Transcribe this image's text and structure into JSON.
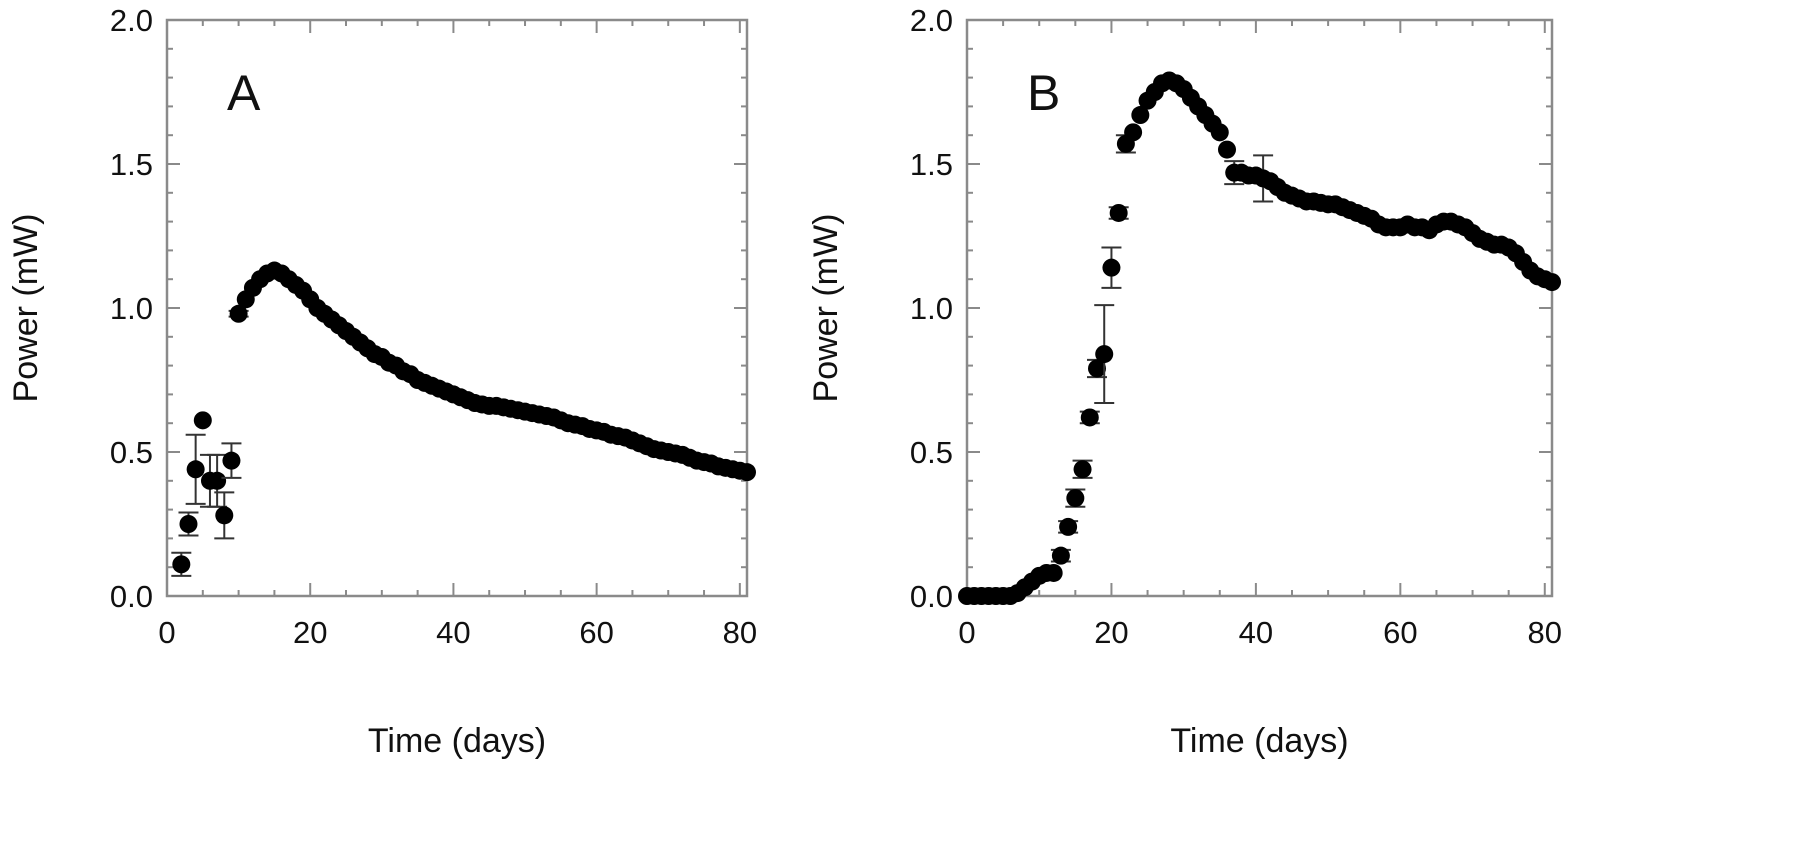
{
  "chart_data": [
    {
      "type": "scatter",
      "panel_label": "A",
      "xlabel": "Time (days)",
      "ylabel": "Power (mW)",
      "xlim": [
        0,
        81
      ],
      "ylim": [
        0,
        2.0
      ],
      "xticks": [
        "0",
        "20",
        "40",
        "60",
        "80"
      ],
      "yticks": [
        "0.0",
        "0.5",
        "1.0",
        "1.5",
        "2.0"
      ],
      "grid": false,
      "x": [
        2,
        3,
        4,
        5,
        6,
        7,
        8,
        9,
        10,
        11,
        12,
        13,
        14,
        15,
        16,
        17,
        18,
        19,
        20,
        21,
        22,
        23,
        24,
        25,
        26,
        27,
        28,
        29,
        30,
        31,
        32,
        33,
        34,
        35,
        36,
        37,
        38,
        39,
        40,
        41,
        42,
        43,
        44,
        45,
        46,
        47,
        48,
        49,
        50,
        51,
        52,
        53,
        54,
        55,
        56,
        57,
        58,
        59,
        60,
        61,
        62,
        63,
        64,
        65,
        66,
        67,
        68,
        69,
        70,
        71,
        72,
        73,
        74,
        75,
        76,
        77,
        78,
        79,
        80,
        81
      ],
      "y": [
        0.11,
        0.25,
        0.44,
        0.61,
        0.4,
        0.4,
        0.28,
        0.47,
        0.98,
        1.03,
        1.07,
        1.1,
        1.12,
        1.13,
        1.12,
        1.1,
        1.08,
        1.06,
        1.03,
        1.0,
        0.98,
        0.96,
        0.94,
        0.92,
        0.9,
        0.88,
        0.86,
        0.84,
        0.83,
        0.81,
        0.8,
        0.78,
        0.77,
        0.75,
        0.74,
        0.73,
        0.72,
        0.71,
        0.7,
        0.69,
        0.68,
        0.67,
        0.665,
        0.66,
        0.66,
        0.655,
        0.65,
        0.645,
        0.64,
        0.635,
        0.63,
        0.625,
        0.62,
        0.61,
        0.6,
        0.595,
        0.59,
        0.58,
        0.575,
        0.57,
        0.56,
        0.555,
        0.55,
        0.54,
        0.53,
        0.52,
        0.51,
        0.505,
        0.5,
        0.495,
        0.49,
        0.48,
        0.47,
        0.465,
        0.46,
        0.45,
        0.445,
        0.44,
        0.435,
        0.43
      ],
      "error": {
        "2": 0.04,
        "3": 0.04,
        "4": 0.12,
        "6": 0.09,
        "7": 0.09,
        "8": 0.08,
        "9": 0.06,
        "10": 0.01
      }
    },
    {
      "type": "scatter",
      "panel_label": "B",
      "xlabel": "Time (days)",
      "ylabel": "Power (mW)",
      "xlim": [
        0,
        81
      ],
      "ylim": [
        0,
        2.0
      ],
      "xticks": [
        "0",
        "20",
        "40",
        "60",
        "80"
      ],
      "yticks": [
        "0.0",
        "0.5",
        "1.0",
        "1.5",
        "2.0"
      ],
      "grid": false,
      "x": [
        0,
        1,
        2,
        3,
        4,
        5,
        6,
        7,
        8,
        9,
        10,
        11,
        12,
        13,
        14,
        15,
        16,
        17,
        18,
        19,
        20,
        21,
        22,
        23,
        24,
        25,
        26,
        27,
        28,
        29,
        30,
        31,
        32,
        33,
        34,
        35,
        36,
        37,
        38,
        39,
        40,
        41,
        42,
        43,
        44,
        45,
        46,
        47,
        48,
        49,
        50,
        51,
        52,
        53,
        54,
        55,
        56,
        57,
        58,
        59,
        60,
        61,
        62,
        63,
        64,
        65,
        66,
        67,
        68,
        69,
        70,
        71,
        72,
        73,
        74,
        75,
        76,
        77,
        78,
        79,
        80,
        81
      ],
      "y": [
        0,
        0,
        0,
        0,
        0,
        0,
        0,
        0.01,
        0.03,
        0.05,
        0.07,
        0.08,
        0.08,
        0.14,
        0.24,
        0.34,
        0.44,
        0.62,
        0.79,
        0.84,
        1.14,
        1.33,
        1.57,
        1.61,
        1.67,
        1.72,
        1.75,
        1.78,
        1.79,
        1.78,
        1.76,
        1.73,
        1.7,
        1.67,
        1.64,
        1.61,
        1.55,
        1.47,
        1.47,
        1.46,
        1.46,
        1.45,
        1.44,
        1.42,
        1.4,
        1.39,
        1.38,
        1.37,
        1.37,
        1.365,
        1.36,
        1.36,
        1.35,
        1.34,
        1.33,
        1.32,
        1.31,
        1.29,
        1.28,
        1.28,
        1.28,
        1.29,
        1.28,
        1.28,
        1.27,
        1.29,
        1.3,
        1.3,
        1.29,
        1.28,
        1.26,
        1.24,
        1.23,
        1.22,
        1.22,
        1.21,
        1.19,
        1.16,
        1.13,
        1.11,
        1.1,
        1.09
      ],
      "error": {
        "13": 0.02,
        "14": 0.02,
        "15": 0.03,
        "16": 0.03,
        "17": 0.02,
        "18": 0.03,
        "19": 0.17,
        "20": 0.07,
        "21": 0.02,
        "22": 0.03,
        "37": 0.04,
        "41": 0.08
      }
    }
  ]
}
